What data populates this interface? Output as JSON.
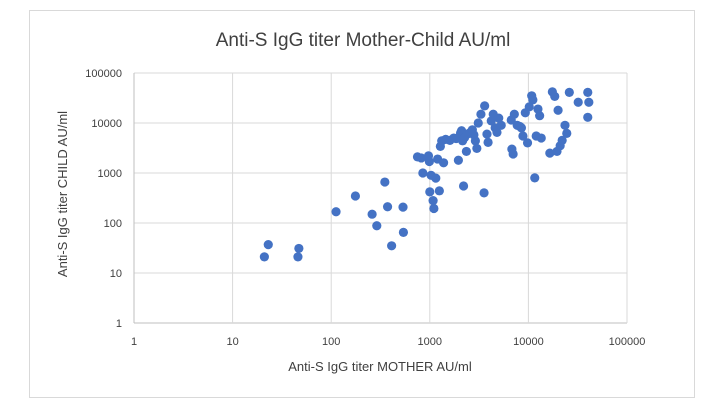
{
  "chart_data": {
    "type": "scatter",
    "title": "Anti-S IgG titer Mother-Child AU/ml",
    "xlabel": "Anti-S IgG titer MOTHER AU/ml",
    "ylabel": "Anti-S IgG titer CHILD AU/ml",
    "x_scale": "log",
    "y_scale": "log",
    "xlim": [
      1,
      100000
    ],
    "ylim": [
      1,
      100000
    ],
    "x_ticks": [
      "1",
      "10",
      "100",
      "1000",
      "10000",
      "100000"
    ],
    "y_ticks": [
      "1",
      "10",
      "100",
      "1000",
      "10000",
      "100000"
    ],
    "grid": true,
    "marker_color": "#4472c4",
    "points": [
      [
        21,
        21
      ],
      [
        23,
        37
      ],
      [
        46,
        21
      ],
      [
        47,
        31
      ],
      [
        112,
        168
      ],
      [
        176,
        347
      ],
      [
        260,
        150
      ],
      [
        290,
        88
      ],
      [
        350,
        659
      ],
      [
        373,
        211
      ],
      [
        410,
        35
      ],
      [
        535,
        208
      ],
      [
        540,
        65
      ],
      [
        750,
        2100
      ],
      [
        820,
        2000
      ],
      [
        850,
        1000
      ],
      [
        970,
        2200
      ],
      [
        990,
        1700
      ],
      [
        1000,
        420
      ],
      [
        1030,
        900
      ],
      [
        1080,
        280
      ],
      [
        1100,
        195
      ],
      [
        1150,
        790
      ],
      [
        1200,
        1900
      ],
      [
        1250,
        440
      ],
      [
        1280,
        3400
      ],
      [
        1320,
        4400
      ],
      [
        1380,
        1600
      ],
      [
        1450,
        4700
      ],
      [
        1600,
        4500
      ],
      [
        1750,
        5000
      ],
      [
        1850,
        4900
      ],
      [
        1950,
        1800
      ],
      [
        2000,
        5200
      ],
      [
        2050,
        6300
      ],
      [
        2100,
        7000
      ],
      [
        2150,
        4400
      ],
      [
        2200,
        550
      ],
      [
        2250,
        5100
      ],
      [
        2350,
        2700
      ],
      [
        2400,
        6000
      ],
      [
        2550,
        6400
      ],
      [
        2700,
        7300
      ],
      [
        2800,
        5800
      ],
      [
        2900,
        4400
      ],
      [
        3000,
        3100
      ],
      [
        3100,
        10000
      ],
      [
        3300,
        15000
      ],
      [
        3550,
        400
      ],
      [
        3600,
        22000
      ],
      [
        3800,
        6000
      ],
      [
        3900,
        4100
      ],
      [
        4200,
        11000
      ],
      [
        4400,
        15000
      ],
      [
        4600,
        8000
      ],
      [
        4800,
        6500
      ],
      [
        5000,
        12500
      ],
      [
        5300,
        9000
      ],
      [
        6700,
        11500
      ],
      [
        6800,
        3000
      ],
      [
        7000,
        2400
      ],
      [
        7200,
        15000
      ],
      [
        7700,
        9000
      ],
      [
        8200,
        8500
      ],
      [
        8500,
        8000
      ],
      [
        8800,
        5500
      ],
      [
        9300,
        16000
      ],
      [
        9800,
        4000
      ],
      [
        10200,
        21000
      ],
      [
        10800,
        35000
      ],
      [
        11100,
        29000
      ],
      [
        11600,
        800
      ],
      [
        12000,
        5500
      ],
      [
        12500,
        19000
      ],
      [
        13000,
        14000
      ],
      [
        13500,
        5000
      ],
      [
        16500,
        2500
      ],
      [
        17500,
        42000
      ],
      [
        18500,
        34000
      ],
      [
        19500,
        2700
      ],
      [
        20000,
        18000
      ],
      [
        21000,
        3500
      ],
      [
        22000,
        4500
      ],
      [
        23500,
        9000
      ],
      [
        24500,
        6200
      ],
      [
        26000,
        41000
      ],
      [
        32000,
        26000
      ],
      [
        40000,
        41000
      ],
      [
        41000,
        26000
      ],
      [
        40000,
        13000
      ]
    ]
  }
}
